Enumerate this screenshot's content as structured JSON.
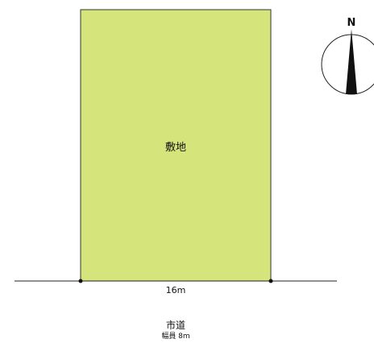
{
  "site": {
    "label": "敷地",
    "frontage": "16m",
    "fill_color": "#d6e47c",
    "outline_color": "#333333"
  },
  "road": {
    "name": "市道",
    "width": "幅員 8m"
  },
  "compass": {
    "letter": "N",
    "icon": "north-arrow-icon"
  }
}
